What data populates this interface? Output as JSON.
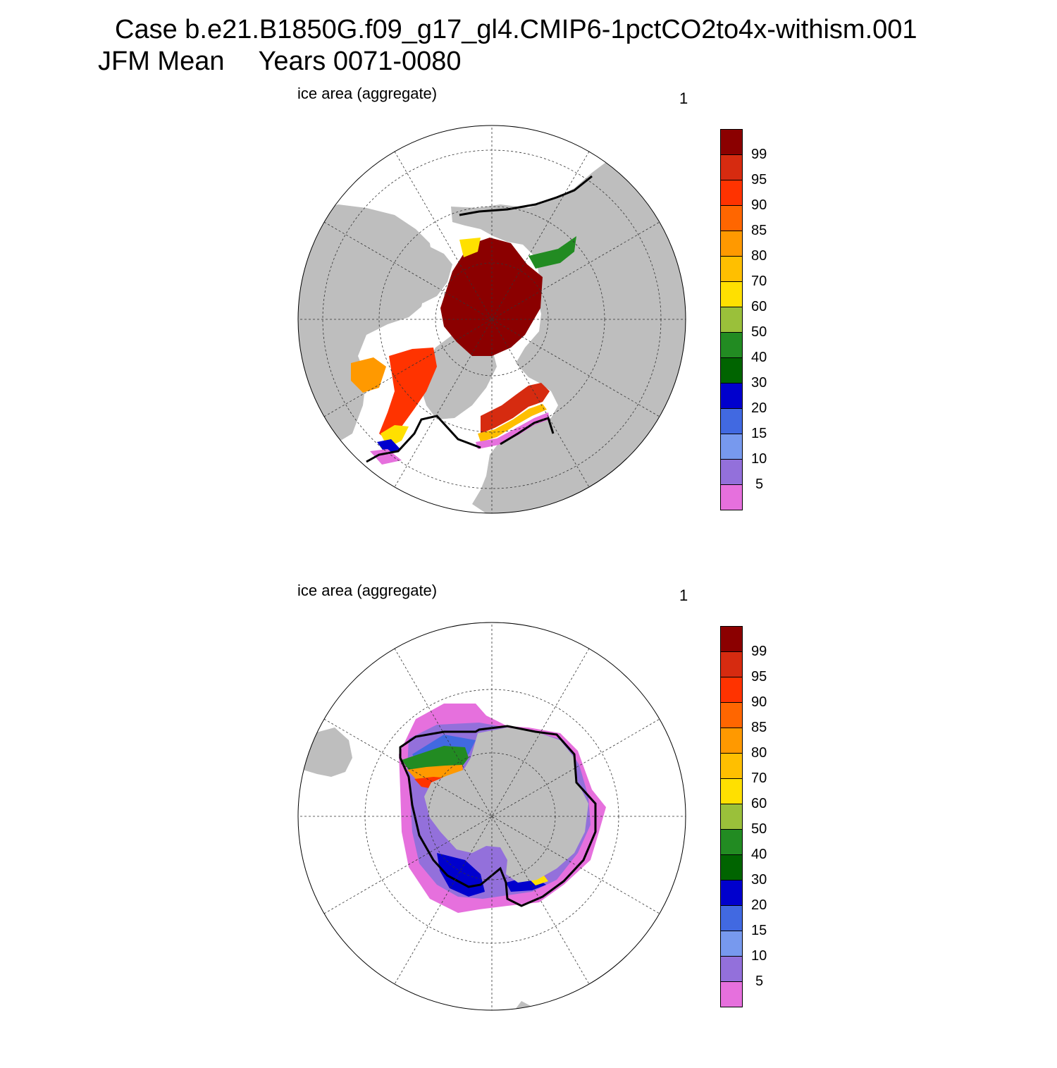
{
  "title": {
    "line1": "Case b.e21.B1850G.f09_g17_gl4.CMIP6-1pctCO2to4x-withism.001",
    "line2_left": "JFM Mean",
    "line2_right": "Years 0071-0080"
  },
  "panels": [
    {
      "hemisphere": "north",
      "label": "ice area  (aggregate)",
      "units": "1"
    },
    {
      "hemisphere": "south",
      "label": "ice area  (aggregate)",
      "units": "1"
    }
  ],
  "colorbar": {
    "labels": [
      "99",
      "95",
      "90",
      "85",
      "80",
      "70",
      "60",
      "50",
      "40",
      "30",
      "20",
      "15",
      "10",
      "5"
    ],
    "colors": [
      "#8b0000",
      "#d62b10",
      "#ff3300",
      "#ff6600",
      "#ff9900",
      "#ffbf00",
      "#ffe000",
      "#9ac03a",
      "#228b22",
      "#006400",
      "#0000cd",
      "#4169e1",
      "#7799ee",
      "#9370db",
      "#e670dd"
    ]
  },
  "map_colors": {
    "land": "#bebebe",
    "ocean": "#ffffff",
    "extent_line": "#000000"
  }
}
